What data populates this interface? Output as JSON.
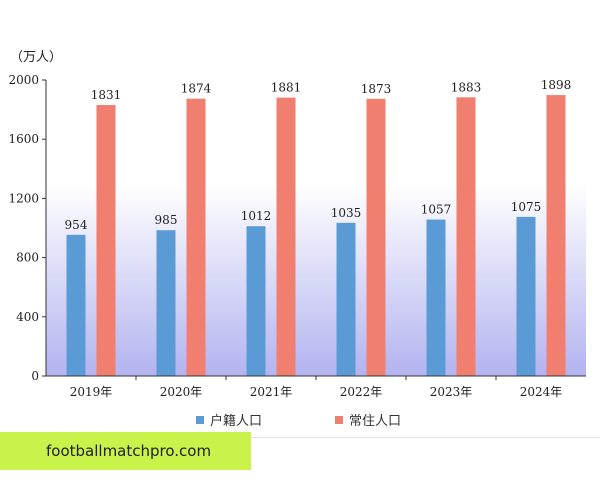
{
  "colors": {
    "series_household": "#5b9bd5",
    "series_resident": "#f07f6f",
    "plot_bg_top": "#ffffff",
    "plot_bg_bottom": "#b3b3f0",
    "watermark_bg": "#c9f24a"
  },
  "watermark": {
    "text": "footballmatchpro.com"
  },
  "chart_data": {
    "type": "bar",
    "title": "",
    "xlabel": "",
    "ylabel": "",
    "unit_label": "（万人）",
    "categories": [
      "2019年",
      "2020年",
      "2021年",
      "2022年",
      "2023年",
      "2024年"
    ],
    "series": [
      {
        "name": "户籍人口",
        "values": [
          954,
          985,
          1012,
          1035,
          1057,
          1075
        ]
      },
      {
        "name": "常住人口",
        "values": [
          1831,
          1874,
          1881,
          1873,
          1883,
          1898
        ]
      }
    ],
    "ylim": [
      0,
      2000
    ],
    "yticks": [
      0,
      400,
      800,
      1200,
      1600,
      2000
    ],
    "grid": false,
    "legend": "bottom",
    "data_labels": true
  }
}
